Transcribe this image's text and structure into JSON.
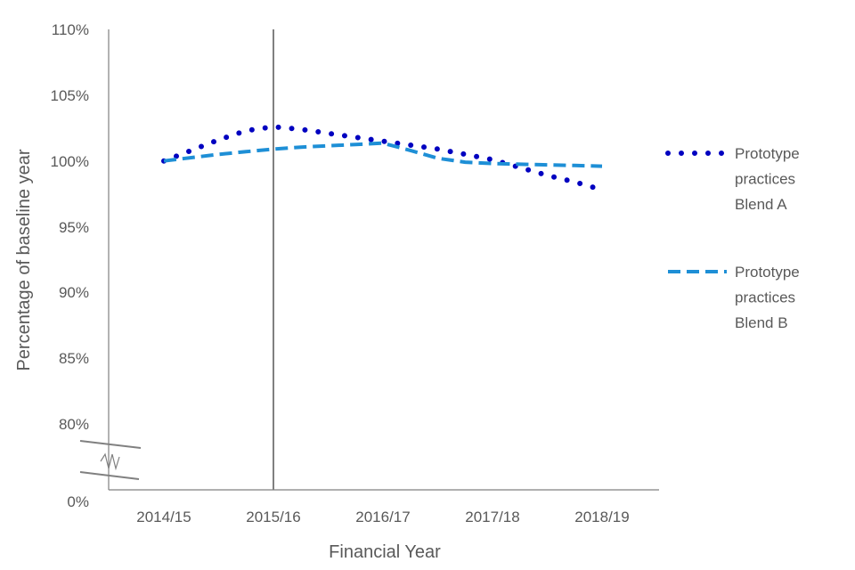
{
  "chart_data": {
    "type": "line",
    "title": "",
    "xlabel": "Financial Year",
    "ylabel": "Percentage of baseline year",
    "categories": [
      "2014/15",
      "2015/16",
      "2016/17",
      "2017/18",
      "2018/19"
    ],
    "y_ticks": [
      "110%",
      "105%",
      "100%",
      "95%",
      "90%",
      "85%",
      "80%",
      "0%"
    ],
    "ylim": [
      80,
      110
    ],
    "axis_break": "between 80% and 0%",
    "x": [
      0,
      0.25,
      0.5,
      0.75,
      1.0,
      1.25,
      1.5,
      1.75,
      2.0,
      2.25,
      2.5,
      2.75,
      3.0,
      3.25,
      3.5,
      3.75,
      4.0
    ],
    "series": [
      {
        "name": "Prototype practices Blend A",
        "legend_lines": [
          "Prototype",
          "practices",
          "Blend A"
        ],
        "style": "dotted",
        "color": "#0000c0",
        "values": [
          100.0,
          100.8,
          101.6,
          102.3,
          102.6,
          102.4,
          102.1,
          101.8,
          101.5,
          101.2,
          100.9,
          100.5,
          100.1,
          99.5,
          98.9,
          98.4,
          97.8
        ]
      },
      {
        "name": "Prototype practices Blend B",
        "legend_lines": [
          "Prototype",
          "practices",
          "Blend B"
        ],
        "style": "dashed",
        "color": "#1e8fd6",
        "values": [
          100.0,
          100.25,
          100.5,
          100.7,
          100.9,
          101.05,
          101.15,
          101.25,
          101.35,
          100.8,
          100.2,
          99.9,
          99.8,
          99.75,
          99.7,
          99.65,
          99.6
        ]
      }
    ],
    "vertical_marker": "2015/16",
    "grid": false,
    "legend_position": "right"
  }
}
